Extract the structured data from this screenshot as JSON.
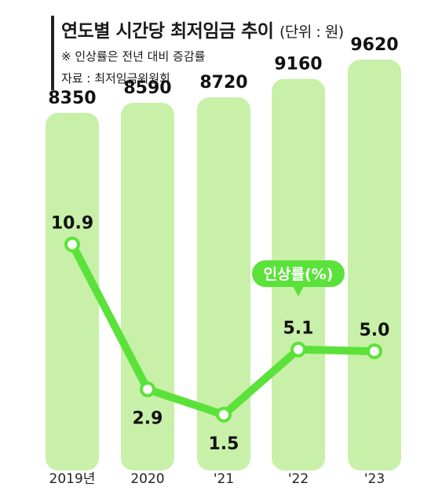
{
  "header": {
    "title": "연도별 시간당 최저임금 추이",
    "unit": "(단위 : 원)",
    "note": "※ 인상률은 전년 대비 증감률",
    "source": "자료 : 최저임금위원회"
  },
  "chart_data": {
    "type": "bar",
    "categories": [
      "2019년",
      "2020",
      "'21",
      "'22",
      "'23"
    ],
    "series": [
      {
        "type": "bar",
        "values": [
          8350,
          8590,
          8720,
          9160,
          9620
        ]
      },
      {
        "name": "인상률(%)",
        "type": "line",
        "values": [
          10.9,
          2.9,
          1.5,
          5.1,
          5.0
        ]
      }
    ],
    "ylim": [
      0,
      9620
    ],
    "grid": false,
    "legend": "inline callout above '22 line point"
  },
  "colors": {
    "bar": "#c8f0a8",
    "line": "#5be23a",
    "marker_fill": "#ffffff"
  }
}
